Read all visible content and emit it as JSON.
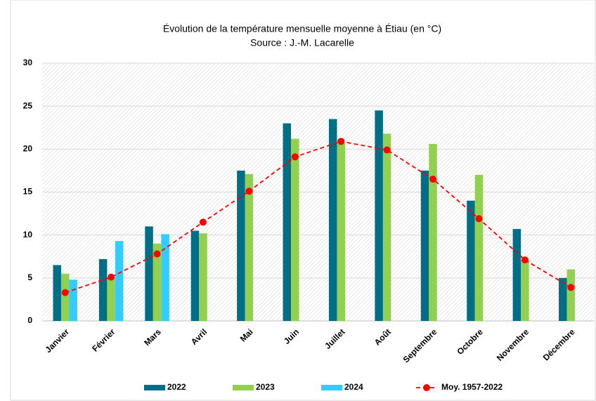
{
  "chart_data": {
    "type": "bar",
    "title": "Évolution de la température mensuelle moyenne à Étiau (en °C)",
    "subtitle": "Source : J.-M. Lacarelle",
    "categories": [
      "Janvier",
      "Février",
      "Mars",
      "Avril",
      "Mai",
      "Juin",
      "Juillet",
      "Août",
      "Septembre",
      "Octobre",
      "Novembre",
      "Décembre"
    ],
    "series": [
      {
        "name": "2022",
        "color": "#006e85",
        "values": [
          6.5,
          7.2,
          11,
          10.5,
          17.5,
          23,
          23.5,
          24.5,
          17.5,
          14,
          10.7,
          5
        ]
      },
      {
        "name": "2023",
        "color": "#92d050",
        "values": [
          5.5,
          5,
          9,
          10.2,
          17.1,
          21.2,
          20.8,
          21.8,
          20.6,
          17,
          7.1,
          6
        ]
      },
      {
        "name": "2024",
        "color": "#33ccff",
        "values": [
          4.8,
          9.3,
          10.1,
          null,
          null,
          null,
          null,
          null,
          null,
          null,
          null,
          null
        ]
      },
      {
        "name": "Moy. 1957-2022",
        "type": "line",
        "color": "#ff0000",
        "values": [
          3.3,
          5.1,
          7.8,
          11.5,
          15.1,
          19.1,
          20.9,
          19.9,
          16.5,
          11.9,
          7.1,
          3.9
        ]
      }
    ],
    "ylim": [
      0,
      30
    ],
    "yticks": [
      0,
      5,
      10,
      15,
      20,
      25,
      30
    ],
    "grid": true,
    "legend": "bottom"
  }
}
